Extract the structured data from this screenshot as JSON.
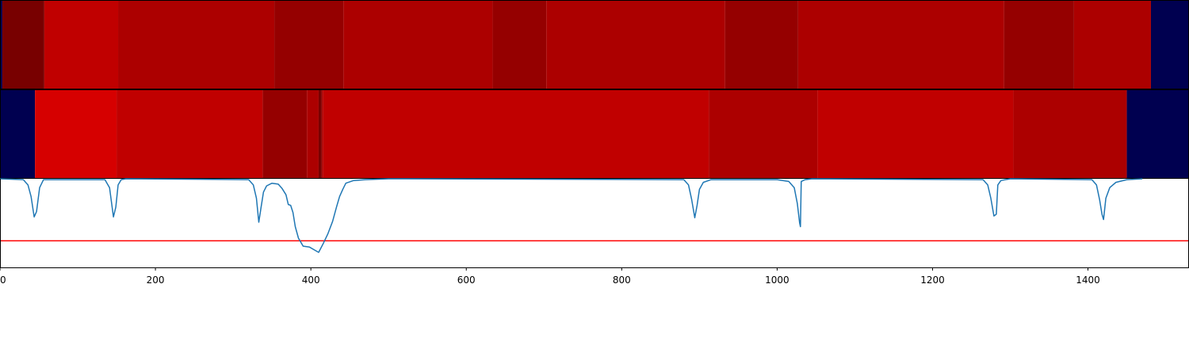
{
  "chart_data": [
    {
      "type": "heatmap",
      "xlim": [
        0,
        1530
      ],
      "segments": [
        {
          "start": 0,
          "end": 3,
          "color": "#000050"
        },
        {
          "start": 3,
          "end": 57,
          "color": "#780000"
        },
        {
          "start": 57,
          "end": 152,
          "color": "#c00000"
        },
        {
          "start": 152,
          "end": 353,
          "color": "#ac0000"
        },
        {
          "start": 353,
          "end": 442,
          "color": "#950000"
        },
        {
          "start": 442,
          "end": 634,
          "color": "#ac0000"
        },
        {
          "start": 634,
          "end": 703,
          "color": "#950000"
        },
        {
          "start": 703,
          "end": 933,
          "color": "#ac0000"
        },
        {
          "start": 933,
          "end": 1027,
          "color": "#950000"
        },
        {
          "start": 1027,
          "end": 1292,
          "color": "#ac0000"
        },
        {
          "start": 1292,
          "end": 1382,
          "color": "#950000"
        },
        {
          "start": 1382,
          "end": 1481,
          "color": "#ac0000"
        },
        {
          "start": 1481,
          "end": 1530,
          "color": "#000050"
        }
      ]
    },
    {
      "type": "heatmap",
      "xlim": [
        0,
        1530
      ],
      "segments": [
        {
          "start": 0,
          "end": 45,
          "color": "#000050"
        },
        {
          "start": 45,
          "end": 150,
          "color": "#d60000"
        },
        {
          "start": 150,
          "end": 338,
          "color": "#c00000"
        },
        {
          "start": 338,
          "end": 395,
          "color": "#950000"
        },
        {
          "start": 395,
          "end": 410,
          "color": "#ac0000"
        },
        {
          "start": 410,
          "end": 414,
          "color": "#780000"
        },
        {
          "start": 414,
          "end": 416,
          "color": "#ac0000"
        },
        {
          "start": 416,
          "end": 912,
          "color": "#c00000"
        },
        {
          "start": 912,
          "end": 1052,
          "color": "#ac0000"
        },
        {
          "start": 1052,
          "end": 1304,
          "color": "#c00000"
        },
        {
          "start": 1304,
          "end": 1450,
          "color": "#ac0000"
        },
        {
          "start": 1450,
          "end": 1530,
          "color": "#000050"
        }
      ]
    },
    {
      "type": "line",
      "xlim": [
        0,
        1530
      ],
      "ylim": [
        0,
        1
      ],
      "xticks": [
        0,
        200,
        400,
        600,
        800,
        1000,
        1200,
        1400
      ],
      "xtick_labels": [
        "0",
        "200",
        "400",
        "600",
        "800",
        "1000",
        "1200",
        "1400"
      ],
      "threshold": 0.3,
      "threshold_color": "#ff0000",
      "line_color": "#1f77b4",
      "series": [
        {
          "x": [
            0,
            30,
            36,
            40,
            44,
            47,
            51,
            56,
            135,
            141,
            146,
            149,
            152,
            156,
            162,
            320,
            326,
            330,
            333,
            336,
            339,
            343,
            350,
            358,
            363,
            368,
            371,
            374,
            377,
            380,
            384,
            390,
            398,
            404,
            410,
            416,
            422,
            428,
            433,
            437,
            441,
            445,
            455,
            470,
            500,
            880,
            886,
            890,
            894,
            897,
            900,
            905,
            915,
            1000,
            1015,
            1022,
            1026,
            1029,
            1030,
            1031,
            1036,
            1045,
            1265,
            1271,
            1275,
            1279,
            1282,
            1284,
            1288,
            1300,
            1405,
            1411,
            1415,
            1418,
            1420,
            1423,
            1428,
            1436,
            1450,
            1470
          ],
          "y": [
            1.0,
            0.99,
            0.93,
            0.8,
            0.57,
            0.63,
            0.9,
            0.99,
            0.99,
            0.9,
            0.57,
            0.68,
            0.93,
            0.99,
            1.0,
            0.99,
            0.93,
            0.78,
            0.51,
            0.68,
            0.85,
            0.92,
            0.95,
            0.94,
            0.89,
            0.82,
            0.71,
            0.7,
            0.62,
            0.46,
            0.33,
            0.24,
            0.23,
            0.2,
            0.17,
            0.27,
            0.38,
            0.52,
            0.68,
            0.8,
            0.88,
            0.95,
            0.98,
            0.99,
            1.0,
            0.99,
            0.93,
            0.77,
            0.56,
            0.7,
            0.88,
            0.96,
            0.99,
            0.99,
            0.97,
            0.9,
            0.72,
            0.5,
            0.46,
            0.97,
            0.99,
            1.0,
            0.99,
            0.93,
            0.78,
            0.58,
            0.6,
            0.93,
            0.98,
            1.0,
            0.99,
            0.93,
            0.76,
            0.6,
            0.54,
            0.78,
            0.9,
            0.96,
            0.99,
            1.0
          ]
        }
      ]
    }
  ]
}
